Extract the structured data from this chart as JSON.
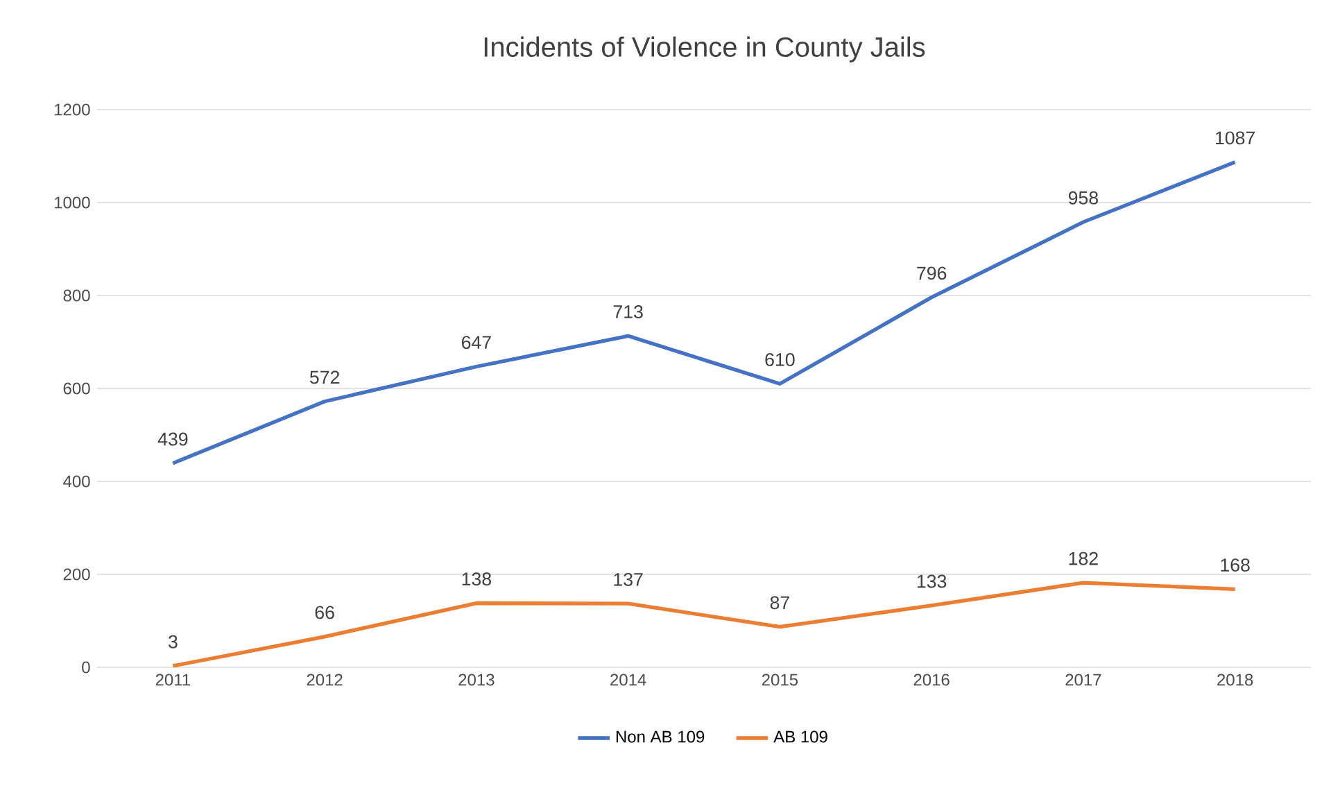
{
  "chart_data": {
    "type": "line",
    "title": "Incidents of Violence in County Jails",
    "categories": [
      "2011",
      "2012",
      "2013",
      "2014",
      "2015",
      "2016",
      "2017",
      "2018"
    ],
    "series": [
      {
        "name": "Non AB 109",
        "color": "#4472c4",
        "values": [
          439,
          572,
          647,
          713,
          610,
          796,
          958,
          1087
        ]
      },
      {
        "name": "AB 109",
        "color": "#ed7d31",
        "values": [
          3,
          66,
          138,
          137,
          87,
          133,
          182,
          168
        ]
      }
    ],
    "ylim": [
      0,
      1200
    ],
    "yticks": [
      0,
      200,
      400,
      600,
      800,
      1000,
      1200
    ],
    "grid": "y",
    "legend": "bottom",
    "marker": "none",
    "line_style": "solid",
    "data_labels": true
  }
}
